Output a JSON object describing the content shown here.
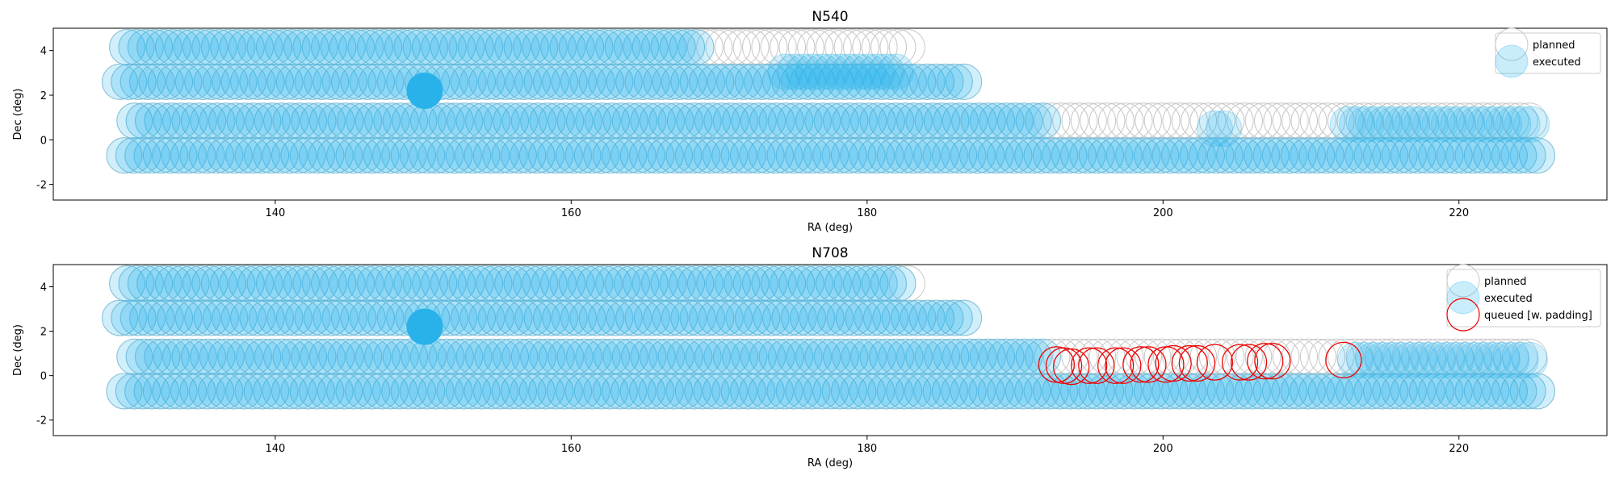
{
  "colors": {
    "planned_edge": "#c8c8c8",
    "executed_fill": "#2cb6ee",
    "executed_highlight": "#29b2ea",
    "queued_edge": "#ee0000"
  },
  "chart_data": [
    {
      "type": "scatter",
      "title": "N540",
      "xlabel": "RA (deg)",
      "ylabel": "Dec (deg)",
      "xlim": [
        125,
        230
      ],
      "ylim": [
        -2.7,
        5.0
      ],
      "xticks": [
        140,
        160,
        180,
        200,
        220
      ],
      "yticks": [
        -2,
        0,
        2,
        4
      ],
      "grid": false,
      "legend": {
        "position": "top-right",
        "entries": [
          {
            "label": "planned",
            "style": "planned"
          },
          {
            "label": "executed",
            "style": "executed"
          }
        ]
      },
      "highlight": {
        "ra": 150.1,
        "dec": 2.2
      },
      "series": [
        {
          "name": "planned",
          "style": "planned",
          "rows": [
            {
              "dec": 4.15,
              "ra_start": 130,
              "ra_end": 182.8
            },
            {
              "dec": 2.6,
              "ra_start": 129.5,
              "ra_end": 187
            },
            {
              "dec": 0.85,
              "ra_start": 130.5,
              "ra_end": 225
            },
            {
              "dec": -0.7,
              "ra_start": 129.8,
              "ra_end": 225.5
            }
          ]
        },
        {
          "name": "executed",
          "style": "executed",
          "rows": [
            {
              "dec": 4.15,
              "ra_start": 130,
              "ra_end": 169
            },
            {
              "dec": 3.05,
              "ra_start": 174.5,
              "ra_end": 182.5
            },
            {
              "dec": 2.6,
              "ra_start": 129.5,
              "ra_end": 187
            },
            {
              "dec": 0.85,
              "ra_start": 130.5,
              "ra_end": 192
            },
            {
              "dec": 0.5,
              "ra_start": 203.5,
              "ra_end": 204.5
            },
            {
              "dec": 0.7,
              "ra_start": 212.5,
              "ra_end": 225
            },
            {
              "dec": -0.7,
              "ra_start": 129.8,
              "ra_end": 225.5
            }
          ]
        }
      ]
    },
    {
      "type": "scatter",
      "title": "N708",
      "xlabel": "RA (deg)",
      "ylabel": "Dec (deg)",
      "xlim": [
        125,
        230
      ],
      "ylim": [
        -2.7,
        5.0
      ],
      "xticks": [
        140,
        160,
        180,
        200,
        220
      ],
      "yticks": [
        -2,
        0,
        2,
        4
      ],
      "grid": false,
      "legend": {
        "position": "top-right",
        "entries": [
          {
            "label": "planned",
            "style": "planned"
          },
          {
            "label": "executed",
            "style": "executed"
          },
          {
            "label": "queued [w. padding]",
            "style": "queued"
          }
        ]
      },
      "highlight": {
        "ra": 150.1,
        "dec": 2.2
      },
      "series": [
        {
          "name": "planned",
          "style": "planned",
          "rows": [
            {
              "dec": 4.15,
              "ra_start": 130,
              "ra_end": 182.8
            },
            {
              "dec": 2.6,
              "ra_start": 129.5,
              "ra_end": 187
            },
            {
              "dec": 0.85,
              "ra_start": 130.5,
              "ra_end": 225
            },
            {
              "dec": -0.7,
              "ra_start": 129.8,
              "ra_end": 225.5
            }
          ]
        },
        {
          "name": "executed",
          "style": "executed",
          "rows": [
            {
              "dec": 4.15,
              "ra_start": 130,
              "ra_end": 182.5
            },
            {
              "dec": 2.6,
              "ra_start": 129.5,
              "ra_end": 187
            },
            {
              "dec": 0.85,
              "ra_start": 130.5,
              "ra_end": 192
            },
            {
              "dec": 0.7,
              "ra_start": 213,
              "ra_end": 225
            },
            {
              "dec": -0.7,
              "ra_start": 129.8,
              "ra_end": 225.5
            }
          ]
        },
        {
          "name": "queued [w. padding]",
          "style": "queued",
          "points": [
            {
              "ra": 192.8,
              "dec": 0.5
            },
            {
              "ra": 193.3,
              "dec": 0.45
            },
            {
              "ra": 193.8,
              "dec": 0.4
            },
            {
              "ra": 195.0,
              "dec": 0.45
            },
            {
              "ra": 195.5,
              "dec": 0.45
            },
            {
              "ra": 196.8,
              "dec": 0.45
            },
            {
              "ra": 197.3,
              "dec": 0.45
            },
            {
              "ra": 198.5,
              "dec": 0.5
            },
            {
              "ra": 199.0,
              "dec": 0.5
            },
            {
              "ra": 200.2,
              "dec": 0.5
            },
            {
              "ra": 200.7,
              "dec": 0.55
            },
            {
              "ra": 201.8,
              "dec": 0.55
            },
            {
              "ra": 202.3,
              "dec": 0.55
            },
            {
              "ra": 203.5,
              "dec": 0.6
            },
            {
              "ra": 205.2,
              "dec": 0.6
            },
            {
              "ra": 205.8,
              "dec": 0.6
            },
            {
              "ra": 206.9,
              "dec": 0.65
            },
            {
              "ra": 207.4,
              "dec": 0.65
            },
            {
              "ra": 212.2,
              "dec": 0.7
            }
          ]
        }
      ]
    }
  ]
}
